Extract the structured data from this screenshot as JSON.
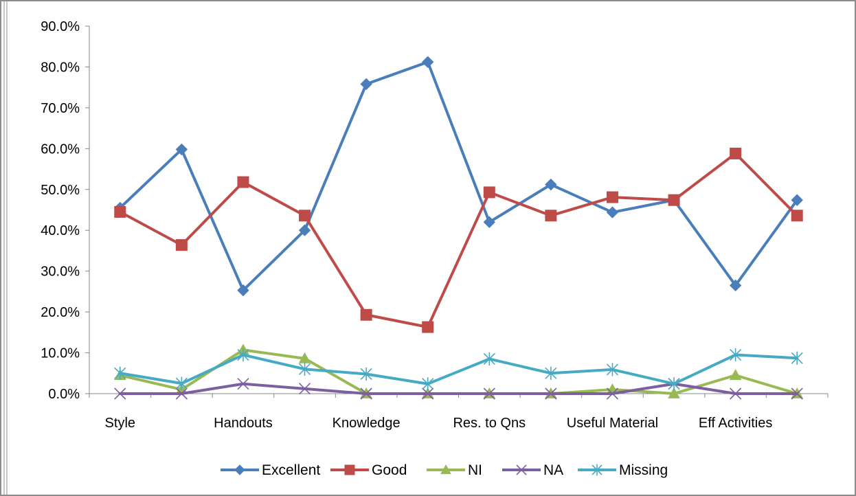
{
  "chart_data": {
    "type": "line",
    "title": "",
    "xlabel": "",
    "ylabel": "",
    "ylim": [
      0,
      0.9
    ],
    "y_ticks": [
      "0.0%",
      "10.0%",
      "20.0%",
      "30.0%",
      "40.0%",
      "50.0%",
      "60.0%",
      "70.0%",
      "80.0%",
      "90.0%"
    ],
    "y_tick_values": [
      0,
      0.1,
      0.2,
      0.3,
      0.4,
      0.5,
      0.6,
      0.7,
      0.8,
      0.9
    ],
    "x_tick_labels": [
      "Style",
      "Handouts",
      "Knowledge",
      "Res. to Qns",
      "Useful Material",
      "Eff Activities"
    ],
    "x_tick_every": 2,
    "grid": false,
    "legend_position": "bottom",
    "series": [
      {
        "name": "Excellent",
        "color": "#4a7ebb",
        "marker": "diamond",
        "values": [
          0.455,
          0.598,
          0.253,
          0.4,
          0.758,
          0.812,
          0.42,
          0.512,
          0.444,
          0.474,
          0.265,
          0.474
        ]
      },
      {
        "name": "Good",
        "color": "#be4b48",
        "marker": "square",
        "values": [
          0.445,
          0.364,
          0.518,
          0.436,
          0.193,
          0.163,
          0.493,
          0.436,
          0.481,
          0.474,
          0.588,
          0.436
        ]
      },
      {
        "name": "NI",
        "color": "#98b954",
        "marker": "triangle",
        "values": [
          0.045,
          0.01,
          0.107,
          0.086,
          0.0,
          0.0,
          0.0,
          0.0,
          0.01,
          0.0,
          0.045,
          0.0
        ]
      },
      {
        "name": "NA",
        "color": "#7d5fa0",
        "marker": "x",
        "values": [
          0.0,
          0.0,
          0.024,
          0.012,
          0.0,
          0.0,
          0.0,
          0.0,
          0.0,
          0.024,
          0.0,
          0.0
        ]
      },
      {
        "name": "Missing",
        "color": "#46aac5",
        "marker": "star",
        "values": [
          0.05,
          0.025,
          0.095,
          0.06,
          0.048,
          0.024,
          0.085,
          0.05,
          0.059,
          0.024,
          0.095,
          0.087
        ]
      }
    ]
  }
}
